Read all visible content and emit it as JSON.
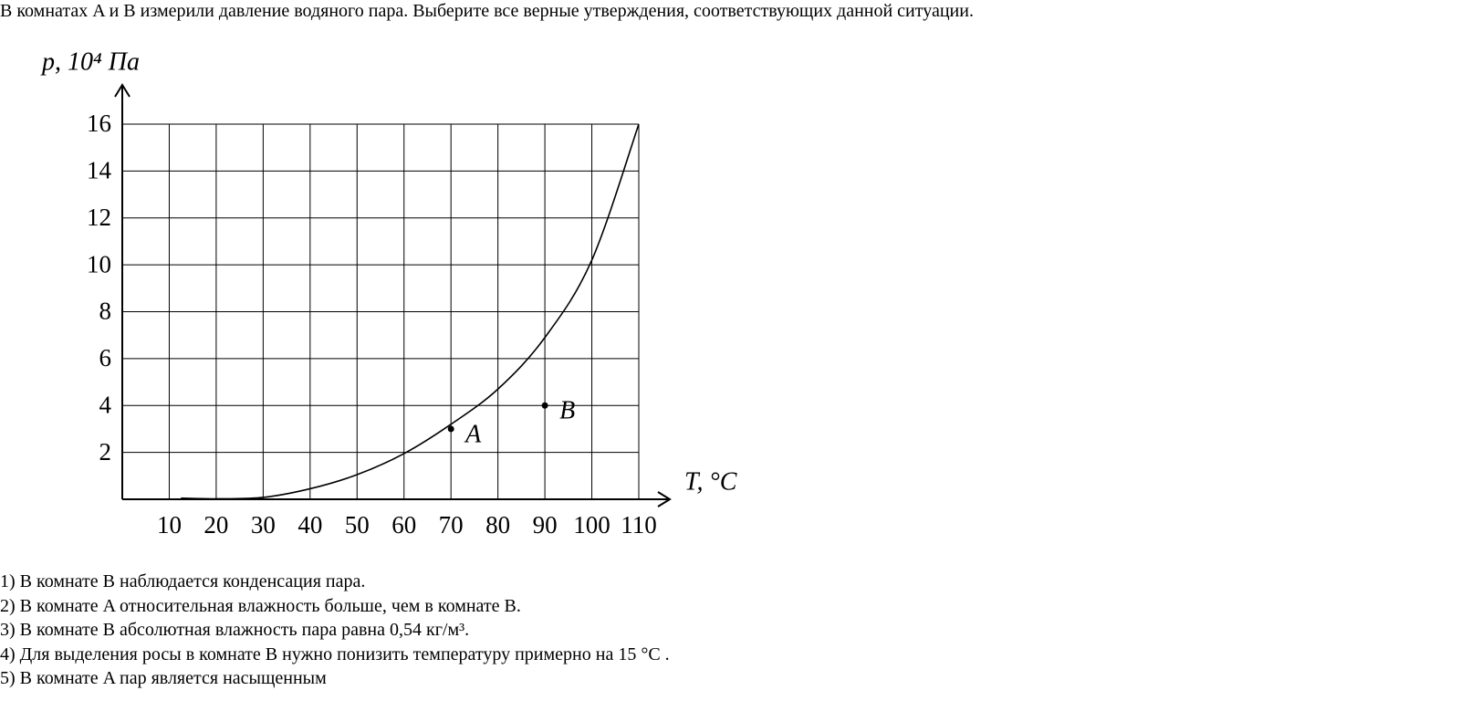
{
  "question": "В комнатах A и B измерили давление водяного пара. Выберите все верные утверждения, соответствующих данной ситуации.",
  "chart_data": {
    "type": "line",
    "y_label": "p, 10⁴ Па",
    "x_label": "T, °C",
    "x": [
      12.5,
      20,
      30,
      40,
      50,
      60,
      70,
      80,
      90,
      100,
      110
    ],
    "series": [
      {
        "color": "#000000",
        "values": [
          0.05,
          0.02,
          0.08,
          0.45,
          1.05,
          1.95,
          3.2,
          4.7,
          6.9,
          10.2,
          16
        ]
      }
    ],
    "points": [
      {
        "label": "A",
        "x": 70,
        "y": 3
      },
      {
        "label": "B",
        "x": 90,
        "y": 4
      }
    ],
    "xlim": [
      0,
      110
    ],
    "ylim": [
      0,
      16
    ],
    "xticks": [
      10,
      20,
      30,
      40,
      50,
      60,
      70,
      80,
      90,
      100,
      110
    ],
    "yticks": [
      2,
      4,
      6,
      8,
      10,
      12,
      14,
      16
    ],
    "grid": true
  },
  "options": [
    "1) В комнате B наблюдается конденсация пара.",
    "2) В комнате A относительная влажность больше, чем в комнате B.",
    "3) В комнате B абсолютная влажность пара равна 0,54 кг/м³.",
    "4) Для выделения росы в комнате B нужно понизить температуру примерно на 15 °C .",
    "5) В комнате A пар является насыщенным"
  ]
}
